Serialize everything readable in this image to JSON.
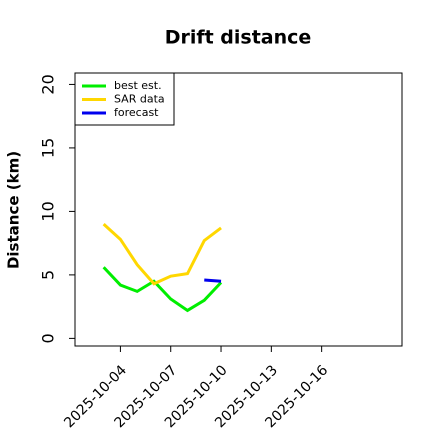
{
  "chart_data": {
    "type": "line",
    "title": "Drift distance",
    "y_label": "Distance (km)",
    "x": [
      "2025-10-03",
      "2025-10-04",
      "2025-10-05",
      "2025-10-06",
      "2025-10-07",
      "2025-10-08",
      "2025-10-09",
      "2025-10-10"
    ],
    "series": [
      {
        "name": "best est.",
        "color": "#00ee00",
        "values": [
          5.6,
          4.2,
          3.7,
          4.5,
          3.1,
          2.2,
          3.0,
          4.4
        ]
      },
      {
        "name": "SAR data",
        "color": "#ffd700",
        "values": [
          9.0,
          7.8,
          5.8,
          4.3,
          4.9,
          5.1,
          7.7,
          8.7
        ]
      },
      {
        "name": "forecast",
        "color": "#0000ee",
        "values": [
          null,
          null,
          null,
          null,
          null,
          null,
          4.6,
          4.5
        ]
      }
    ],
    "xlim": [
      "2025-10-01T07:00Z",
      "2025-10-20T19:00Z"
    ],
    "xticks": [
      "2025-10-04",
      "2025-10-07",
      "2025-10-10",
      "2025-10-13",
      "2025-10-16"
    ],
    "ylim": [
      -0.6,
      20.9
    ],
    "yticks": [
      0,
      5,
      10,
      15,
      20
    ],
    "grid": false,
    "legend": "upper left"
  }
}
